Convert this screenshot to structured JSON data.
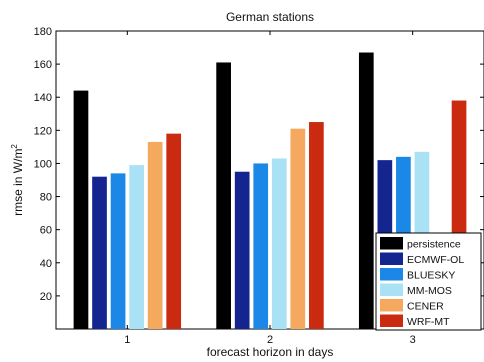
{
  "chart_data": {
    "type": "bar",
    "title": "German stations",
    "xlabel": "forecast horizon in days",
    "ylabel": "rmse in W/m",
    "ylabel_superscript": "2",
    "categories": [
      "1",
      "2",
      "3"
    ],
    "ylim": [
      0,
      180
    ],
    "yticks": [
      20,
      40,
      60,
      80,
      100,
      120,
      140,
      160,
      180
    ],
    "grid": false,
    "legend_position": "bottom-right",
    "series": [
      {
        "name": "persistence",
        "color": "#000000",
        "values": [
          144,
          161,
          167
        ]
      },
      {
        "name": "ECMWF-OL",
        "color": "#15258f",
        "values": [
          92,
          95,
          102
        ]
      },
      {
        "name": "BLUESKY",
        "color": "#1b87e6",
        "values": [
          94,
          100,
          104
        ]
      },
      {
        "name": "MM-MOS",
        "color": "#a9e1f5",
        "values": [
          99,
          103,
          107
        ]
      },
      {
        "name": "CENER",
        "color": "#f5a95e",
        "values": [
          113,
          121,
          null
        ]
      },
      {
        "name": "WRF-MT",
        "color": "#c92a10",
        "values": [
          118,
          125,
          138
        ]
      }
    ]
  }
}
